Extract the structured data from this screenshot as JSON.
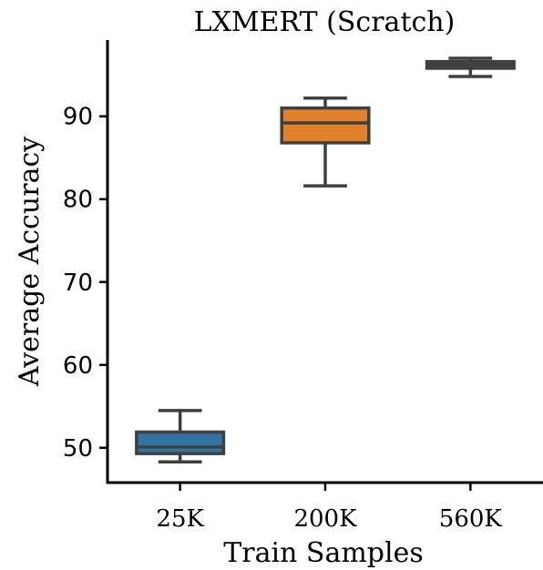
{
  "chart_data": {
    "type": "box",
    "title": "LXMERT (Scratch)",
    "xlabel": "Train Samples",
    "ylabel": "Average Accuracy",
    "ylim": [
      45.8,
      99.2
    ],
    "yticks": [
      50,
      60,
      70,
      80,
      90
    ],
    "grid": false,
    "categories": [
      "25K",
      "200K",
      "560K"
    ],
    "boxes": [
      {
        "category": "25K",
        "whisker_low": 48.3,
        "q1": 49.3,
        "median": 50.1,
        "q3": 51.9,
        "whisker_high": 54.5,
        "color": "#3274a1"
      },
      {
        "category": "200K",
        "whisker_low": 81.6,
        "q1": 86.8,
        "median": 89.2,
        "q3": 91.0,
        "whisker_high": 92.2,
        "color": "#e1812c"
      },
      {
        "category": "560K",
        "whisker_low": 94.8,
        "q1": 95.8,
        "median": 96.2,
        "q3": 96.6,
        "whisker_high": 97.0,
        "color": "#3a923a"
      }
    ]
  }
}
